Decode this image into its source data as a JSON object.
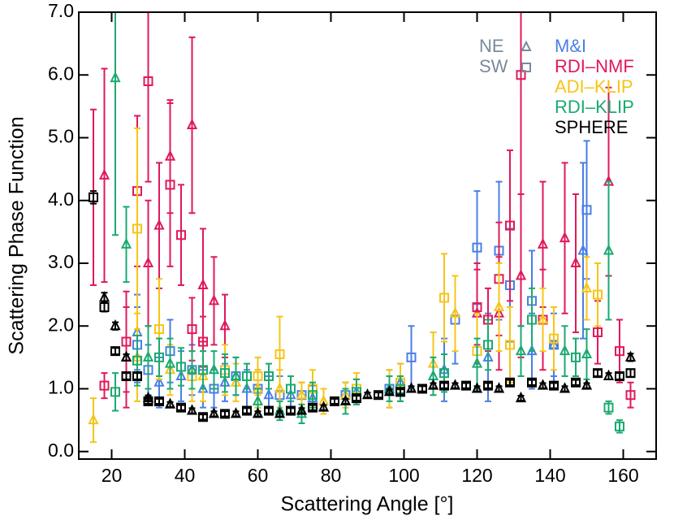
{
  "chart_data": {
    "type": "scatter",
    "xlabel": "Scattering Angle [°]",
    "ylabel": "Scattering Phase Function",
    "xlim": [
      11,
      169
    ],
    "ylim": [
      -0.12,
      7.0
    ],
    "xticks": [
      20,
      40,
      60,
      80,
      100,
      120,
      140,
      160
    ],
    "yticks": [
      {
        "value": 0,
        "label": "0.0"
      },
      {
        "value": 1,
        "label": "1.0"
      },
      {
        "value": 2,
        "label": "2.0"
      },
      {
        "value": 3,
        "label": "3.0"
      },
      {
        "value": 4,
        "label": "4.0"
      },
      {
        "value": 5,
        "label": "5.0"
      },
      {
        "value": 6,
        "label": "6.0"
      },
      {
        "value": 7,
        "label": "7.0"
      }
    ],
    "markers": [
      {
        "label": "NE",
        "shape": "triangle"
      },
      {
        "label": "SW",
        "shape": "square"
      }
    ],
    "marker_legend_color": "#7a8a9c",
    "series": [
      {
        "name": "M&I",
        "color": "#4a7fe6",
        "groups": [
          {
            "x": [
              27,
              33,
              39,
              45,
              51,
              57,
              63,
              69,
              75,
              87,
              99,
              111,
              123,
              135,
              141,
              149
            ],
            "values": [
              1.9,
              1.1,
              1.2,
              1.0,
              1.1,
              1.0,
              0.9,
              0.9,
              0.85,
              0.95,
              1.1,
              1.3,
              1.5,
              1.6,
              1.7,
              3.2
            ],
            "errors": [
              0.6,
              0.4,
              0.4,
              0.3,
              0.3,
              0.3,
              0.3,
              0.3,
              0.2,
              0.2,
              0.3,
              0.5,
              0.7,
              0.6,
              0.6,
              1.4
            ]
          },
          {
            "x": [
              27,
              30,
              36,
              42,
              48,
              54,
              60,
              66,
              72,
              84,
              96,
              102,
              114,
              120,
              126,
              129,
              135,
              141,
              150
            ],
            "values": [
              1.7,
              1.3,
              1.6,
              1.3,
              1.0,
              1.2,
              1.0,
              0.9,
              0.9,
              0.9,
              1.0,
              1.5,
              2.1,
              3.25,
              3.2,
              2.65,
              2.4,
              1.7,
              3.85
            ],
            "errors": [
              0.6,
              0.4,
              0.5,
              0.4,
              0.3,
              0.3,
              0.3,
              0.3,
              0.2,
              0.2,
              0.3,
              0.5,
              0.7,
              0.9,
              1.1,
              0.9,
              0.8,
              0.5,
              1.1
            ]
          }
        ]
      },
      {
        "name": "RDI–NMF",
        "color": "#e0195a",
        "groups": [
          {
            "x": [
              18,
              24,
              30,
              33,
              36,
              42,
              45,
              48,
              51,
              120,
              126,
              132,
              138,
              144,
              147,
              156
            ],
            "values": [
              4.4,
              1.5,
              3.0,
              3.6,
              4.7,
              5.2,
              2.65,
              2.4,
              2.0,
              2.2,
              2.2,
              2.8,
              3.3,
              3.4,
              3.0,
              4.3
            ],
            "errors": [
              1.7,
              0.8,
              1.0,
              1.0,
              0.9,
              1.4,
              0.9,
              0.7,
              0.5,
              0.8,
              0.9,
              1.3,
              1.0,
              1.2,
              1.1,
              1.5
            ]
          },
          {
            "x": [
              15,
              18,
              24,
              27,
              30,
              36,
              39,
              42,
              45,
              120,
              123,
              126,
              129,
              132,
              138,
              153,
              159,
              162
            ],
            "values": [
              4.05,
              1.05,
              1.75,
              4.15,
              5.9,
              4.25,
              3.45,
              1.95,
              1.75,
              2.3,
              2.1,
              2.75,
              3.6,
              6.0,
              2.1,
              1.9,
              1.6,
              0.9
            ],
            "errors": [
              1.4,
              0.2,
              0.8,
              1.2,
              1.6,
              1.3,
              0.8,
              0.5,
              0.4,
              0.6,
              0.5,
              0.9,
              1.2,
              4.0,
              0.8,
              0.5,
              0.5,
              0.2
            ]
          }
        ]
      },
      {
        "name": "ADI–KLIP",
        "color": "#f5c518",
        "groups": [
          {
            "x": [
              15,
              27,
              36,
              45,
              54,
              60,
              66,
              72,
              78,
              84,
              96,
              108,
              114,
              126,
              138,
              150
            ],
            "values": [
              0.5,
              1.5,
              1.3,
              1.2,
              1.1,
              1.0,
              1.0,
              0.9,
              0.8,
              0.9,
              1.0,
              1.4,
              2.2,
              2.3,
              2.1,
              2.6
            ],
            "errors": [
              0.35,
              0.7,
              0.4,
              0.4,
              0.3,
              0.3,
              0.3,
              0.2,
              0.2,
              0.2,
              0.3,
              0.5,
              0.6,
              0.7,
              0.5,
              0.5
            ]
          },
          {
            "x": [
              27,
              33,
              42,
              51,
              60,
              66,
              75,
              87,
              99,
              111,
              120,
              129,
              141,
              153
            ],
            "values": [
              3.55,
              1.95,
              1.2,
              1.3,
              1.2,
              1.55,
              1.0,
              1.0,
              1.1,
              2.45,
              1.6,
              1.7,
              1.8,
              2.5
            ],
            "errors": [
              1.6,
              0.8,
              0.4,
              0.4,
              0.3,
              0.6,
              0.3,
              0.25,
              0.3,
              0.7,
              0.6,
              0.6,
              0.5,
              0.5
            ]
          }
        ]
      },
      {
        "name": "RDI–KLIP",
        "color": "#1aaa70",
        "groups": [
          {
            "x": [
              21,
              24,
              30,
              36,
              42,
              48,
              54,
              60,
              66,
              72,
              84,
              96,
              108,
              120,
              132,
              144,
              150,
              156
            ],
            "values": [
              5.95,
              3.3,
              1.5,
              1.4,
              1.3,
              1.3,
              1.2,
              0.8,
              0.65,
              0.6,
              0.8,
              1.0,
              1.2,
              1.4,
              1.6,
              1.6,
              1.55,
              3.2
            ],
            "errors": [
              2.5,
              0.6,
              0.5,
              0.4,
              0.3,
              0.3,
              0.3,
              0.2,
              0.15,
              0.15,
              0.2,
              0.2,
              0.3,
              0.4,
              0.4,
              0.4,
              0.4,
              1.1
            ]
          },
          {
            "x": [
              21,
              27,
              33,
              39,
              45,
              51,
              57,
              63,
              69,
              75,
              87,
              99,
              111,
              123,
              135,
              147,
              156,
              159
            ],
            "values": [
              0.95,
              1.45,
              1.5,
              1.35,
              1.3,
              1.25,
              1.2,
              1.2,
              1.0,
              0.9,
              0.95,
              1.0,
              1.25,
              1.7,
              2.1,
              1.5,
              0.7,
              0.4
            ],
            "errors": [
              0.3,
              0.4,
              0.3,
              0.3,
              0.3,
              0.3,
              0.2,
              0.2,
              0.2,
              0.2,
              0.2,
              0.2,
              0.3,
              0.4,
              0.5,
              0.3,
              0.1,
              0.1
            ]
          }
        ]
      },
      {
        "name": "SPHERE",
        "color": "#000000",
        "groups": [
          {
            "x": [
              18,
              21,
              24,
              30,
              36,
              42,
              48,
              54,
              60,
              66,
              72,
              78,
              84,
              90,
              96,
              102,
              108,
              114,
              120,
              126,
              132,
              138,
              144,
              150,
              156,
              162
            ],
            "values": [
              2.45,
              2.0,
              1.5,
              0.85,
              0.75,
              0.65,
              0.6,
              0.6,
              0.6,
              0.6,
              0.65,
              0.7,
              0.8,
              0.9,
              0.95,
              1.0,
              1.05,
              1.05,
              1.0,
              1.0,
              0.85,
              1.05,
              1.0,
              1.05,
              1.2,
              1.5
            ],
            "errors": [
              0.08,
              0.06,
              0.05,
              0.04,
              0.04,
              0.04,
              0.04,
              0.04,
              0.04,
              0.04,
              0.04,
              0.04,
              0.04,
              0.04,
              0.04,
              0.04,
              0.04,
              0.04,
              0.04,
              0.04,
              0.04,
              0.04,
              0.04,
              0.04,
              0.05,
              0.06
            ]
          },
          {
            "x": [
              15,
              18,
              21,
              24,
              27,
              30,
              33,
              39,
              45,
              51,
              57,
              63,
              69,
              75,
              81,
              87,
              93,
              99,
              105,
              111,
              117,
              123,
              129,
              135,
              141,
              147,
              153,
              159,
              162
            ],
            "values": [
              4.05,
              2.3,
              1.6,
              1.2,
              1.2,
              0.8,
              0.8,
              0.7,
              0.55,
              0.6,
              0.65,
              0.65,
              0.65,
              0.7,
              0.8,
              0.85,
              0.9,
              0.95,
              1.0,
              1.05,
              1.05,
              1.05,
              1.1,
              1.1,
              1.05,
              1.1,
              1.25,
              1.2,
              1.25
            ],
            "errors": [
              0.1,
              0.07,
              0.05,
              0.05,
              0.05,
              0.04,
              0.04,
              0.04,
              0.04,
              0.04,
              0.04,
              0.04,
              0.04,
              0.04,
              0.04,
              0.04,
              0.04,
              0.04,
              0.04,
              0.04,
              0.04,
              0.04,
              0.04,
              0.04,
              0.04,
              0.04,
              0.05,
              0.05,
              0.06
            ]
          }
        ]
      }
    ]
  }
}
